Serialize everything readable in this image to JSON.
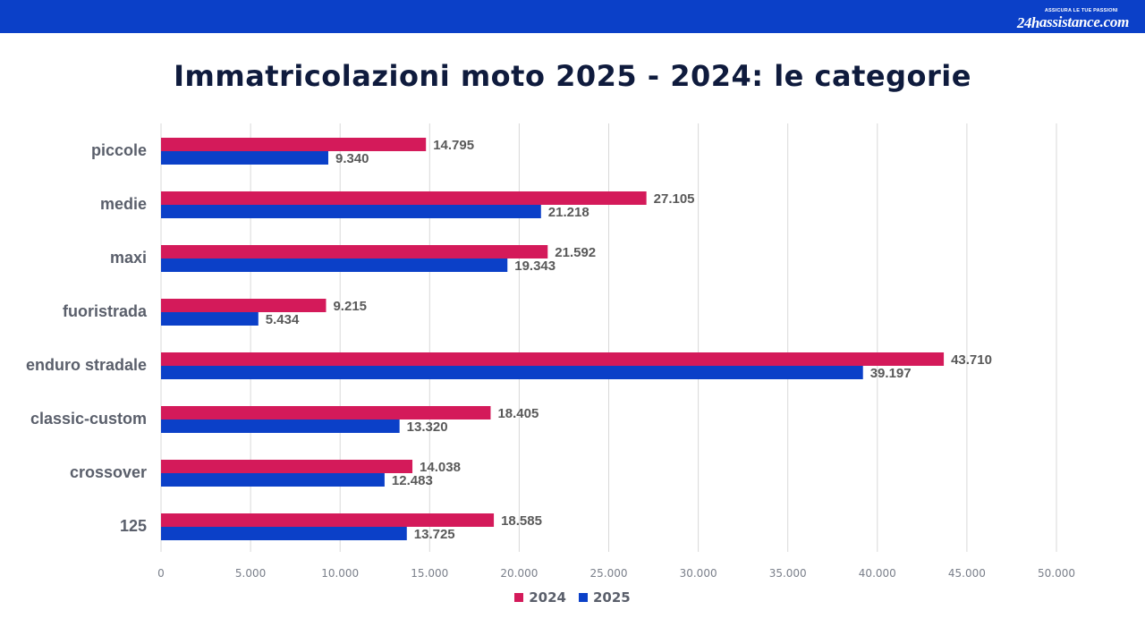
{
  "header": {
    "brand_prefix": "24h",
    "brand_name": "assistance.com",
    "brand_tagline": "ASSICURA LE TUE PASSIONI",
    "bar_color": "#0b40c8"
  },
  "chart_data": {
    "type": "bar",
    "orientation": "horizontal",
    "title": "Immatricolazioni moto 2025 - 2024: le categorie",
    "categories": [
      "piccole",
      "medie",
      "maxi",
      "fuoristrada",
      "enduro stradale",
      "classic-custom",
      "crossover",
      "125"
    ],
    "series": [
      {
        "name": "2024",
        "color": "#d41a5a",
        "values": [
          14795,
          27105,
          21592,
          9215,
          43710,
          18405,
          14038,
          18585
        ],
        "labels": [
          "14.795",
          "27.105",
          "21.592",
          "9.215",
          "43.710",
          "18.405",
          "14.038",
          "18.585"
        ]
      },
      {
        "name": "2025",
        "color": "#0b40c8",
        "values": [
          9340,
          21218,
          19343,
          5434,
          39197,
          13320,
          12483,
          13725
        ],
        "labels": [
          "9.340",
          "21.218",
          "19.343",
          "5.434",
          "39.197",
          "13.320",
          "12.483",
          "13.725"
        ]
      }
    ],
    "xlim": [
      0,
      50000
    ],
    "x_ticks": [
      0,
      5000,
      10000,
      15000,
      20000,
      25000,
      30000,
      35000,
      40000,
      45000,
      50000
    ],
    "x_tick_labels": [
      "0",
      "5.000",
      "10.000",
      "15.000",
      "20.000",
      "25.000",
      "30.000",
      "35.000",
      "40.000",
      "45.000",
      "50.000"
    ],
    "grid": true,
    "legend_position": "bottom",
    "xlabel": "",
    "ylabel": ""
  }
}
